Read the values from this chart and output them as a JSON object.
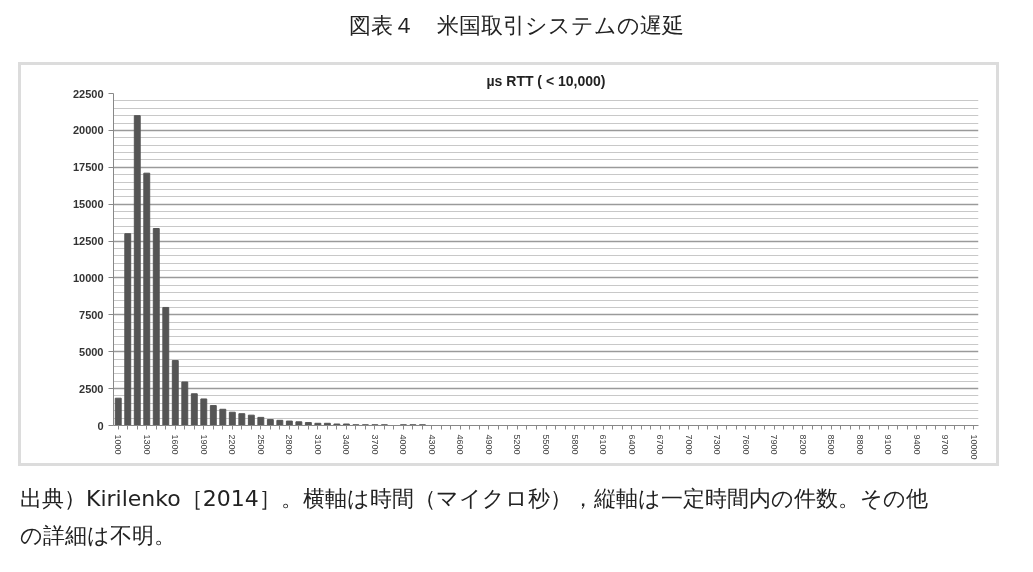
{
  "chart_data": {
    "type": "bar",
    "title": "図表４　米国取引システムの遅延",
    "subtitle": "µs RTT ( < 10,000)",
    "categories": [
      "1000",
      null,
      null,
      "1300",
      null,
      null,
      "1600",
      null,
      null,
      "1900",
      null,
      null,
      "2200",
      null,
      null,
      "2500",
      null,
      null,
      "2800",
      null,
      null,
      "3100",
      null,
      null,
      "3400",
      null,
      null,
      "3700",
      null,
      null,
      "4000",
      null,
      null,
      "4300",
      null,
      null,
      "4600",
      null,
      null,
      "4900",
      null,
      null,
      "5200",
      null,
      null,
      "5500",
      null,
      null,
      "5800",
      null,
      null,
      "6100",
      null,
      null,
      "6400",
      null,
      null,
      "6700",
      null,
      null,
      "7000",
      null,
      null,
      "7300",
      null,
      null,
      "7600",
      null,
      null,
      "7900",
      null,
      null,
      "8200",
      null,
      null,
      "8500",
      null,
      null,
      "8800",
      null,
      null,
      "9100",
      null,
      null,
      "9400",
      null,
      null,
      "9700",
      null,
      null,
      "10000"
    ],
    "values": [
      1850,
      13000,
      21000,
      17100,
      13350,
      8000,
      4400,
      2950,
      2150,
      1800,
      1350,
      1100,
      900,
      800,
      700,
      550,
      400,
      350,
      300,
      250,
      200,
      150,
      150,
      100,
      100,
      50,
      50,
      50,
      50,
      0,
      50,
      50,
      50,
      0,
      0,
      0,
      0,
      0,
      0,
      0,
      0,
      0,
      0,
      0,
      0,
      0,
      0,
      0,
      0,
      0,
      0,
      0,
      0,
      0,
      0,
      0,
      0,
      0,
      0,
      0,
      0,
      0,
      0,
      0,
      0,
      0,
      0,
      0,
      0,
      0,
      0,
      0,
      0,
      0,
      0,
      0,
      0,
      0,
      0,
      0,
      0,
      0,
      0,
      0,
      0,
      0,
      0,
      0,
      0,
      0,
      0
    ],
    "color": "#555555",
    "ylim": [
      0,
      22500
    ],
    "yticks": [
      0,
      2500,
      5000,
      7500,
      10000,
      12500,
      15000,
      17500,
      20000,
      22500
    ],
    "grid": "y",
    "annotations": [
      "出典）Kirilenko［2014］。横軸は時間（マイクロ秒），縦軸は一定時間内の件数。その他の詳細は不明。"
    ]
  }
}
